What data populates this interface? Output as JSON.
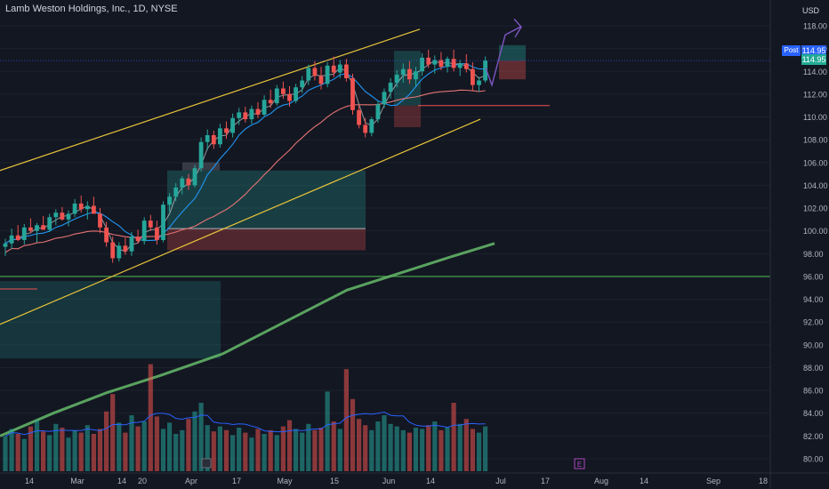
{
  "header": {
    "title": "Lamb Weston Holdings, Inc., 1D, NYSE",
    "currency": "USD",
    "post_label": "Post",
    "post_price": "114.95",
    "last_price": "114.95"
  },
  "colors": {
    "background": "#131722",
    "up": "#26a69a",
    "down": "#ef5350",
    "channel": "#e8c43a",
    "horizontal_line": "#4caf50",
    "ma_short": "#2196f3",
    "ma_slow": "#66bb6a",
    "ma_mid": "#e57373",
    "volume_ma": "#2962ff",
    "arrow": "#7e57c2",
    "earnings_marker": "#ab47bc"
  },
  "chart_data": {
    "type": "candlestick",
    "symbol": "Lamb Weston Holdings, Inc.",
    "interval": "1D",
    "exchange": "NYSE",
    "ylim": [
      79,
      120
    ],
    "y_ticks": [
      "118.00",
      "116.00",
      "114.00",
      "112.00",
      "110.00",
      "108.00",
      "106.00",
      "104.00",
      "102.00",
      "100.00",
      "98.00",
      "96.00",
      "94.00",
      "92.00",
      "90.00",
      "88.00",
      "86.00",
      "84.00",
      "82.00",
      "80.00"
    ],
    "x_ticks": [
      "14",
      "Mar",
      "14",
      "20",
      "Apr",
      "17",
      "May",
      "15",
      "Jun",
      "14",
      "Jul",
      "17",
      "Aug",
      "14",
      "Sep",
      "18"
    ],
    "horizontal_level": 96.0,
    "last_price": 114.95,
    "candles": [
      {
        "o": 98.6,
        "h": 99.3,
        "l": 97.8,
        "c": 98.9
      },
      {
        "o": 98.9,
        "h": 100.2,
        "l": 98.4,
        "c": 99.6
      },
      {
        "o": 99.6,
        "h": 100.5,
        "l": 99.1,
        "c": 99.2
      },
      {
        "o": 99.2,
        "h": 100.6,
        "l": 98.8,
        "c": 100.3
      },
      {
        "o": 100.3,
        "h": 101.1,
        "l": 99.8,
        "c": 100.0
      },
      {
        "o": 100.0,
        "h": 100.7,
        "l": 99.0,
        "c": 100.5
      },
      {
        "o": 100.5,
        "h": 101.3,
        "l": 100.1,
        "c": 100.1
      },
      {
        "o": 100.1,
        "h": 101.5,
        "l": 99.9,
        "c": 101.2
      },
      {
        "o": 101.2,
        "h": 101.9,
        "l": 100.5,
        "c": 101.6
      },
      {
        "o": 101.6,
        "h": 102.1,
        "l": 100.9,
        "c": 101.0
      },
      {
        "o": 101.0,
        "h": 101.8,
        "l": 100.4,
        "c": 101.5
      },
      {
        "o": 101.5,
        "h": 102.8,
        "l": 101.2,
        "c": 102.4
      },
      {
        "o": 102.4,
        "h": 103.1,
        "l": 101.6,
        "c": 101.9
      },
      {
        "o": 101.9,
        "h": 102.6,
        "l": 101.0,
        "c": 102.2
      },
      {
        "o": 102.2,
        "h": 103.0,
        "l": 101.8,
        "c": 101.5
      },
      {
        "o": 101.5,
        "h": 102.0,
        "l": 99.8,
        "c": 100.3
      },
      {
        "o": 100.3,
        "h": 100.8,
        "l": 98.6,
        "c": 99.0
      },
      {
        "o": 99.0,
        "h": 99.5,
        "l": 97.2,
        "c": 97.6
      },
      {
        "o": 97.6,
        "h": 99.0,
        "l": 97.3,
        "c": 98.7
      },
      {
        "o": 98.7,
        "h": 99.4,
        "l": 97.9,
        "c": 98.2
      },
      {
        "o": 98.2,
        "h": 99.9,
        "l": 97.8,
        "c": 99.5
      },
      {
        "o": 99.5,
        "h": 100.1,
        "l": 98.9,
        "c": 99.1
      },
      {
        "o": 99.1,
        "h": 101.2,
        "l": 98.8,
        "c": 100.9
      },
      {
        "o": 100.9,
        "h": 101.4,
        "l": 100.0,
        "c": 100.3
      },
      {
        "o": 100.3,
        "h": 100.9,
        "l": 98.8,
        "c": 99.2
      },
      {
        "o": 99.2,
        "h": 102.6,
        "l": 99.0,
        "c": 102.3
      },
      {
        "o": 102.3,
        "h": 103.3,
        "l": 101.7,
        "c": 103.0
      },
      {
        "o": 103.0,
        "h": 104.2,
        "l": 102.6,
        "c": 103.8
      },
      {
        "o": 103.8,
        "h": 104.8,
        "l": 103.2,
        "c": 104.6
      },
      {
        "o": 104.6,
        "h": 105.0,
        "l": 103.6,
        "c": 104.0
      },
      {
        "o": 104.0,
        "h": 105.8,
        "l": 103.8,
        "c": 105.5
      },
      {
        "o": 105.5,
        "h": 108.2,
        "l": 105.2,
        "c": 107.8
      },
      {
        "o": 107.8,
        "h": 108.9,
        "l": 107.1,
        "c": 108.4
      },
      {
        "o": 108.4,
        "h": 108.8,
        "l": 107.2,
        "c": 107.6
      },
      {
        "o": 107.6,
        "h": 109.4,
        "l": 107.3,
        "c": 109.0
      },
      {
        "o": 109.0,
        "h": 109.6,
        "l": 108.1,
        "c": 108.6
      },
      {
        "o": 108.6,
        "h": 110.3,
        "l": 108.2,
        "c": 109.9
      },
      {
        "o": 109.9,
        "h": 110.8,
        "l": 109.3,
        "c": 110.4
      },
      {
        "o": 110.4,
        "h": 110.9,
        "l": 109.5,
        "c": 109.8
      },
      {
        "o": 109.8,
        "h": 111.0,
        "l": 109.4,
        "c": 110.7
      },
      {
        "o": 110.7,
        "h": 111.3,
        "l": 109.9,
        "c": 110.2
      },
      {
        "o": 110.2,
        "h": 111.9,
        "l": 110.0,
        "c": 111.5
      },
      {
        "o": 111.5,
        "h": 112.4,
        "l": 110.8,
        "c": 111.2
      },
      {
        "o": 111.2,
        "h": 112.8,
        "l": 111.0,
        "c": 112.5
      },
      {
        "o": 112.5,
        "h": 113.1,
        "l": 111.6,
        "c": 112.0
      },
      {
        "o": 112.0,
        "h": 112.7,
        "l": 110.9,
        "c": 111.4
      },
      {
        "o": 111.4,
        "h": 112.9,
        "l": 111.2,
        "c": 112.6
      },
      {
        "o": 112.6,
        "h": 113.6,
        "l": 112.1,
        "c": 113.2
      },
      {
        "o": 113.2,
        "h": 114.6,
        "l": 112.8,
        "c": 114.3
      },
      {
        "o": 114.3,
        "h": 114.9,
        "l": 113.2,
        "c": 113.6
      },
      {
        "o": 113.6,
        "h": 114.4,
        "l": 112.4,
        "c": 112.9
      },
      {
        "o": 112.9,
        "h": 114.8,
        "l": 112.6,
        "c": 114.5
      },
      {
        "o": 114.5,
        "h": 115.3,
        "l": 113.5,
        "c": 113.9
      },
      {
        "o": 113.9,
        "h": 115.0,
        "l": 113.4,
        "c": 114.6
      },
      {
        "o": 114.6,
        "h": 115.1,
        "l": 113.1,
        "c": 113.4
      },
      {
        "o": 113.4,
        "h": 113.8,
        "l": 110.2,
        "c": 110.6
      },
      {
        "o": 110.6,
        "h": 111.0,
        "l": 109.0,
        "c": 109.3
      },
      {
        "o": 109.3,
        "h": 109.9,
        "l": 108.2,
        "c": 108.6
      },
      {
        "o": 108.6,
        "h": 110.0,
        "l": 108.3,
        "c": 109.8
      },
      {
        "o": 109.8,
        "h": 111.4,
        "l": 109.5,
        "c": 111.1
      },
      {
        "o": 111.1,
        "h": 112.5,
        "l": 110.8,
        "c": 112.2
      },
      {
        "o": 112.2,
        "h": 113.4,
        "l": 111.6,
        "c": 113.0
      },
      {
        "o": 113.0,
        "h": 114.1,
        "l": 112.6,
        "c": 113.7
      },
      {
        "o": 113.7,
        "h": 114.7,
        "l": 113.0,
        "c": 114.2
      },
      {
        "o": 114.2,
        "h": 114.9,
        "l": 112.9,
        "c": 113.3
      },
      {
        "o": 113.3,
        "h": 114.4,
        "l": 112.7,
        "c": 114.0
      },
      {
        "o": 114.0,
        "h": 115.6,
        "l": 113.6,
        "c": 115.2
      },
      {
        "o": 115.2,
        "h": 115.9,
        "l": 114.3,
        "c": 114.6
      },
      {
        "o": 114.6,
        "h": 115.4,
        "l": 113.8,
        "c": 115.0
      },
      {
        "o": 115.0,
        "h": 115.7,
        "l": 114.1,
        "c": 114.4
      },
      {
        "o": 114.4,
        "h": 115.3,
        "l": 113.9,
        "c": 115.1
      },
      {
        "o": 115.1,
        "h": 115.9,
        "l": 114.0,
        "c": 114.3
      },
      {
        "o": 114.3,
        "h": 115.0,
        "l": 113.6,
        "c": 114.7
      },
      {
        "o": 114.7,
        "h": 115.5,
        "l": 113.9,
        "c": 114.2
      },
      {
        "o": 114.2,
        "h": 114.8,
        "l": 112.3,
        "c": 112.8
      },
      {
        "o": 112.8,
        "h": 113.5,
        "l": 112.2,
        "c": 113.2
      },
      {
        "o": 113.2,
        "h": 115.3,
        "l": 113.0,
        "c": 114.95
      }
    ],
    "volume": [
      0.28,
      0.34,
      0.3,
      0.26,
      0.36,
      0.41,
      0.32,
      0.29,
      0.38,
      0.35,
      0.27,
      0.33,
      0.31,
      0.37,
      0.3,
      0.34,
      0.48,
      0.62,
      0.39,
      0.31,
      0.45,
      0.36,
      0.4,
      0.86,
      0.44,
      0.34,
      0.39,
      0.3,
      0.33,
      0.42,
      0.48,
      0.55,
      0.37,
      0.32,
      0.36,
      0.33,
      0.29,
      0.35,
      0.31,
      0.27,
      0.34,
      0.3,
      0.33,
      0.29,
      0.36,
      0.41,
      0.34,
      0.31,
      0.38,
      0.33,
      0.35,
      0.64,
      0.4,
      0.34,
      0.82,
      0.58,
      0.42,
      0.37,
      0.33,
      0.4,
      0.45,
      0.38,
      0.36,
      0.33,
      0.31,
      0.35,
      0.34,
      0.37,
      0.4,
      0.33,
      0.35,
      0.55,
      0.38,
      0.42,
      0.34,
      0.31,
      0.36
    ]
  }
}
